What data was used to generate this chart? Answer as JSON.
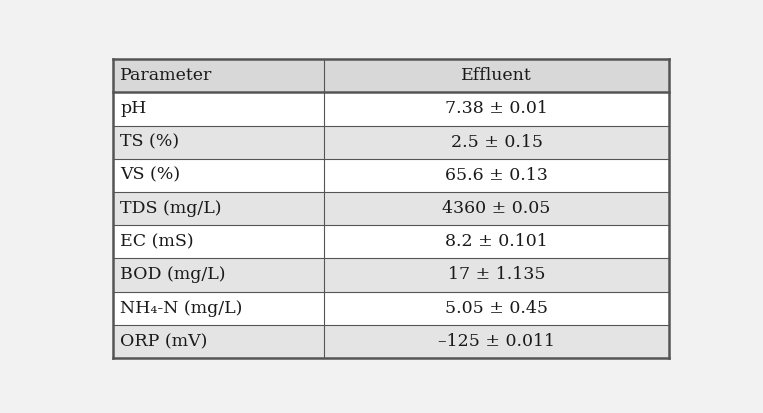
{
  "col_headers": [
    "Parameter",
    "Effluent"
  ],
  "rows": [
    [
      "pH",
      "7.38 ± 0.01"
    ],
    [
      "TS (%)",
      "2.5 ± 0.15"
    ],
    [
      "VS (%)",
      "65.6 ± 0.13"
    ],
    [
      "TDS (mg/L)",
      "4360 ± 0.05"
    ],
    [
      "EC (mS)",
      "8.2 ± 0.101"
    ],
    [
      "BOD (mg/L)",
      "17 ± 1.135"
    ],
    [
      "NH₄-N (mg/L)",
      "5.05 ± 0.45"
    ],
    [
      "ORP (mV)",
      "–125 ± 0.011"
    ]
  ],
  "background_color": "#f2f2f2",
  "header_bg": "#d8d8d8",
  "row_bg_white": "#ffffff",
  "row_bg_gray": "#e4e4e4",
  "text_color": "#1a1a1a",
  "border_color": "#555555",
  "font_size": 12.5,
  "header_font_size": 12.5,
  "col_split": 0.38,
  "figsize": [
    7.63,
    4.13
  ],
  "dpi": 100
}
